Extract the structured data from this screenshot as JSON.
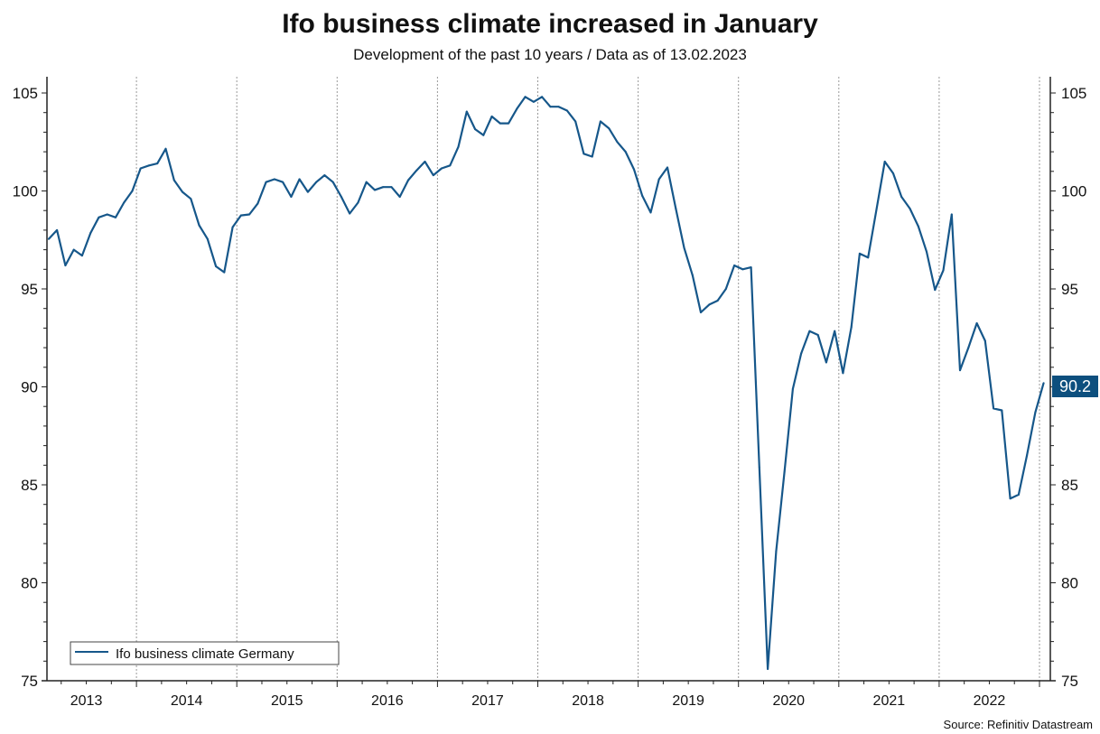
{
  "chart_data": {
    "type": "line",
    "title": "Ifo business climate increased in January",
    "subtitle": "Development of the past 10 years / Data as of 13.02.2023",
    "source": "Source: Refinitiv Datastream",
    "xlabel": "",
    "ylabel": "",
    "ylim": [
      75,
      105
    ],
    "y_ticks": [
      "75",
      "80",
      "85",
      "90",
      "95",
      "100",
      "105"
    ],
    "x_tick_labels": [
      "2013",
      "2014",
      "2015",
      "2016",
      "2017",
      "2018",
      "2019",
      "2020",
      "2021",
      "2022"
    ],
    "x_start": "Feb 2013",
    "x_end": "Jan 2023",
    "frequency": "monthly",
    "grid": "vertical dotted lines at year boundaries",
    "legend_position": "bottom-left",
    "last_value_label": "90.2",
    "series": [
      {
        "name": "Ifo business climate Germany",
        "color": "#16578a",
        "values": [
          97.55,
          98.0,
          96.2,
          97.0,
          96.7,
          97.85,
          98.65,
          98.8,
          98.65,
          99.4,
          100.0,
          101.15,
          101.3,
          101.4,
          102.15,
          100.55,
          99.95,
          99.6,
          98.25,
          97.55,
          96.15,
          95.85,
          98.15,
          98.75,
          98.8,
          99.35,
          100.45,
          100.6,
          100.45,
          99.7,
          100.6,
          99.95,
          100.45,
          100.8,
          100.45,
          99.7,
          98.85,
          99.4,
          100.45,
          100.05,
          100.2,
          100.2,
          99.7,
          100.55,
          101.05,
          101.5,
          100.8,
          101.15,
          101.3,
          102.25,
          104.05,
          103.15,
          102.85,
          103.8,
          103.45,
          103.45,
          104.2,
          104.8,
          104.55,
          104.8,
          104.3,
          104.3,
          104.1,
          103.55,
          101.9,
          101.75,
          103.55,
          103.2,
          102.5,
          102.0,
          101.1,
          99.75,
          98.9,
          100.6,
          101.2,
          99.1,
          97.1,
          95.7,
          93.8,
          94.2,
          94.4,
          95.0,
          96.2,
          96.0,
          96.1,
          85.9,
          75.6,
          81.6,
          85.65,
          89.9,
          91.7,
          92.85,
          92.65,
          91.25,
          92.85,
          90.7,
          93.05,
          96.8,
          96.6,
          99.05,
          101.5,
          100.9,
          99.7,
          99.1,
          98.2,
          96.9,
          94.95,
          95.95,
          98.8,
          90.85,
          92.0,
          93.25,
          92.35,
          88.9,
          88.8,
          84.3,
          84.5,
          86.5,
          88.7,
          90.2
        ]
      }
    ]
  },
  "colors": {
    "line": "#16578a",
    "badge": "#0d4f7e",
    "grid": "#999999"
  }
}
